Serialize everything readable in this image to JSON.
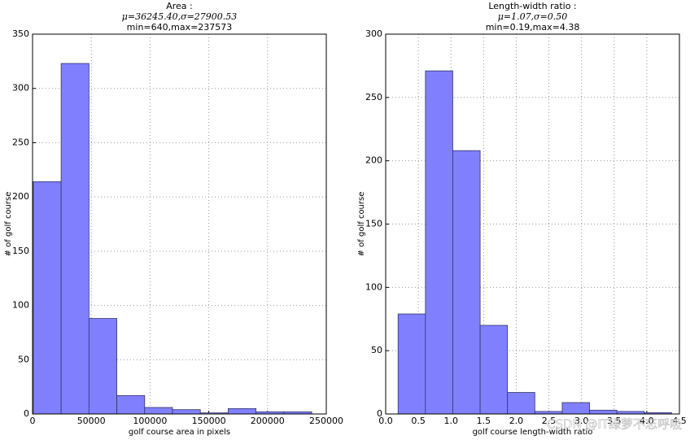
{
  "chart_data": [
    {
      "type": "histogram",
      "title": "Area :",
      "subtitle": "μ=36245.40,σ=27900.53",
      "note": "min=640,max=237573",
      "x_label": "golf course area in pixels",
      "y_label": "# of golf course",
      "bins": [
        640,
        24333,
        48027,
        71720,
        95413,
        119107,
        142800,
        166493,
        190187,
        213880,
        237573
      ],
      "values": [
        214,
        323,
        88,
        17,
        6,
        4,
        1,
        5,
        2,
        2
      ],
      "color": "#8080ff",
      "xlim": [
        0,
        250000
      ],
      "xticks": [
        0,
        50000,
        100000,
        150000,
        200000,
        250000
      ],
      "ylim": [
        0,
        350
      ],
      "yticks": [
        0,
        50,
        100,
        150,
        200,
        250,
        300,
        350
      ],
      "grid": true
    },
    {
      "type": "histogram",
      "title": "Length-width ratio :",
      "subtitle": "μ=1.07,σ=0.50",
      "note": "min=0.19,max=4.38",
      "x_label": "golf course length-width ratio",
      "y_label": "# of golf course",
      "bins": [
        0.19,
        0.609,
        1.028,
        1.447,
        1.866,
        2.285,
        2.704,
        3.123,
        3.542,
        3.961,
        4.38
      ],
      "values": [
        79,
        271,
        208,
        70,
        17,
        2,
        9,
        3,
        2,
        1
      ],
      "color": "#8080ff",
      "xlim": [
        0,
        4.5
      ],
      "xticks": [
        {
          "value": 0,
          "label": "0.0"
        },
        0.5,
        {
          "value": 1,
          "label": "1.0"
        },
        1.5,
        {
          "value": 2,
          "label": "2.0"
        },
        2.5,
        {
          "value": 3,
          "label": "3.0"
        },
        3.5,
        {
          "value": 4,
          "label": "4.0"
        },
        4.5
      ],
      "ylim": [
        0,
        300
      ],
      "yticks": [
        0,
        50,
        100,
        150,
        200,
        250,
        300
      ],
      "grid": true
    }
  ],
  "watermark": "CSDN @IT绿萝不忘呼吸"
}
